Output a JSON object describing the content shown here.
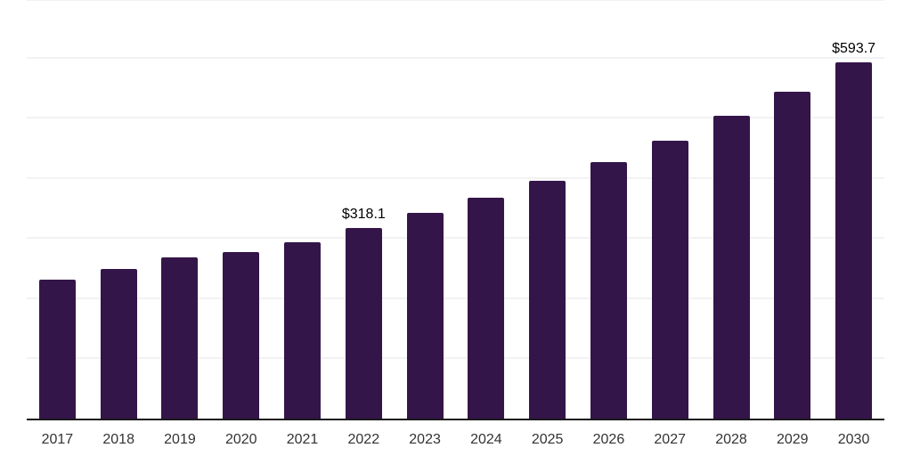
{
  "chart_data": {
    "type": "bar",
    "title": "",
    "xlabel": "",
    "ylabel": "",
    "categories": [
      "2017",
      "2018",
      "2019",
      "2020",
      "2021",
      "2022",
      "2023",
      "2024",
      "2025",
      "2026",
      "2027",
      "2028",
      "2029",
      "2030"
    ],
    "values": [
      232.5,
      250,
      269.5,
      278.5,
      295,
      318.1,
      343.5,
      369,
      397.5,
      428,
      463.5,
      505,
      545,
      593.7
    ],
    "point_labels": [
      null,
      null,
      null,
      null,
      null,
      "$318.1",
      null,
      null,
      null,
      null,
      null,
      null,
      null,
      "$593.7"
    ],
    "ylim": [
      0,
      700
    ],
    "gridline_step": 100,
    "grid": "horizontal",
    "y_axis_ticks_visible": false,
    "legend": "none",
    "colors": {
      "bar": "#341549",
      "gridline": "#f2f2f2",
      "axis_line": "#1a1a1a",
      "point_label_text": "#000000",
      "tick_label_text": "#333333",
      "background": "#ffffff"
    }
  }
}
